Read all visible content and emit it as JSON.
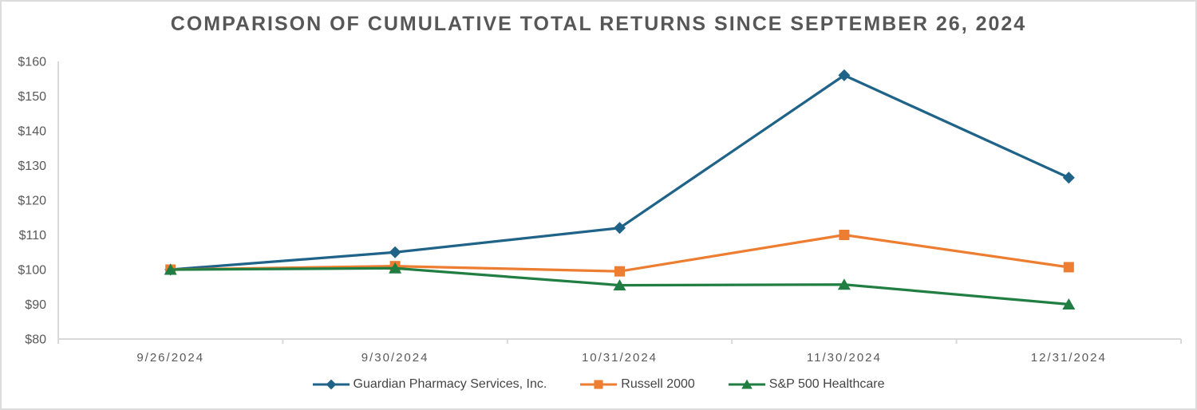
{
  "canvas": {
    "background": "#ffffff",
    "border_color": "#dcdcdc"
  },
  "chart_data": {
    "type": "line",
    "title": "COMPARISON OF CUMULATIVE TOTAL RETURNS SINCE SEPTEMBER 26, 2024",
    "categories": [
      "9/26/2024",
      "9/30/2024",
      "10/31/2024",
      "11/30/2024",
      "12/31/2024"
    ],
    "series": [
      {
        "name": "Guardian Pharmacy Services, Inc.",
        "color": "#1F6388",
        "marker": "diamond",
        "values": [
          100,
          105,
          112,
          156,
          126.5
        ]
      },
      {
        "name": "Russell 2000",
        "color": "#ED7D31",
        "marker": "square",
        "values": [
          100,
          101,
          99.5,
          110,
          100.7
        ]
      },
      {
        "name": "S&P 500 Healthcare",
        "color": "#217E43",
        "marker": "triangle",
        "values": [
          100,
          100.4,
          95.5,
          95.7,
          90
        ]
      }
    ],
    "ylim": [
      80,
      160
    ],
    "y_tick_step": 10,
    "y_tick_prefix": "$",
    "y_tick_labels": [
      "$160",
      "$150",
      "$140",
      "$130",
      "$120",
      "$110",
      "$100",
      "$90",
      "$80"
    ],
    "grid": false,
    "legend_position": "bottom",
    "axis_color": "#d9d9d9",
    "label_color": "#595959",
    "title_color": "#575757"
  }
}
